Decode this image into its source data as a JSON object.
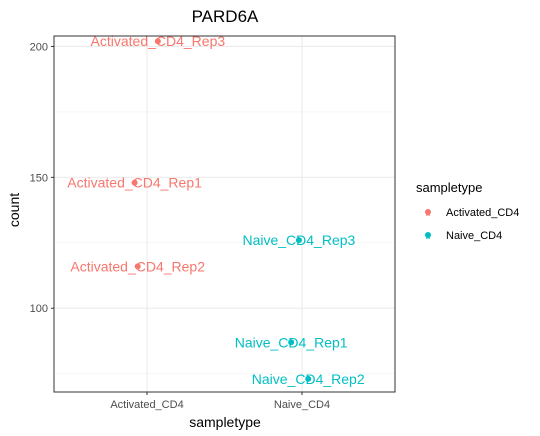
{
  "chart_data": {
    "type": "scatter",
    "title": "PARD6A",
    "xlabel": "sampletype",
    "ylabel": "count",
    "categories": [
      "Activated_CD4",
      "Naive_CD4"
    ],
    "yticks": [
      100,
      150,
      200
    ],
    "ylim": [
      68,
      204
    ],
    "grid": true,
    "legend": {
      "title": "sampletype",
      "position": "right",
      "entries": [
        {
          "label": "Activated_CD4",
          "color": "#F8766D"
        },
        {
          "label": "Naive_CD4",
          "color": "#00BFC4"
        }
      ]
    },
    "points": [
      {
        "category": "Activated_CD4",
        "jitter": 0.07,
        "y": 202,
        "label": "Activated_CD4_Rep3",
        "color": "#F8766D"
      },
      {
        "category": "Activated_CD4",
        "jitter": -0.08,
        "y": 148,
        "label": "Activated_CD4_Rep1",
        "color": "#F8766D"
      },
      {
        "category": "Activated_CD4",
        "jitter": -0.06,
        "y": 116,
        "label": "Activated_CD4_Rep2",
        "color": "#F8766D"
      },
      {
        "category": "Naive_CD4",
        "jitter": -0.02,
        "y": 126,
        "label": "Naive_CD4_Rep3",
        "color": "#00BFC4"
      },
      {
        "category": "Naive_CD4",
        "jitter": -0.07,
        "y": 87,
        "label": "Naive_CD4_Rep1",
        "color": "#00BFC4"
      },
      {
        "category": "Naive_CD4",
        "jitter": 0.04,
        "y": 73,
        "label": "Naive_CD4_Rep2",
        "color": "#00BFC4"
      }
    ]
  }
}
